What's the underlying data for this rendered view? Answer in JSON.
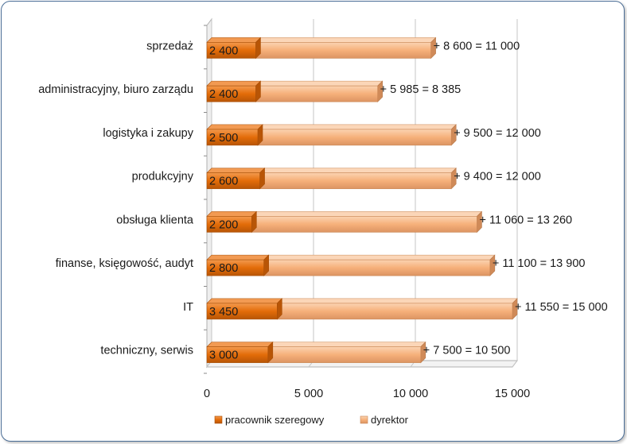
{
  "chart_data": {
    "type": "bar",
    "orientation": "horizontal",
    "stacked": true,
    "three_d": true,
    "categories": [
      "sprzedaż",
      "administracyjny, biuro zarządu",
      "logistyka i zakupy",
      "produkcyjny",
      "obsługa klienta",
      "finanse, księgowość, audyt",
      "IT",
      "techniczny, serwis"
    ],
    "series": [
      {
        "name": "pracownik szeregowy",
        "color": "#e36c09",
        "values": [
          2400,
          2400,
          2500,
          2600,
          2200,
          2800,
          3450,
          3000
        ],
        "labels": [
          "2 400",
          "2 400",
          "2 500",
          "2 600",
          "2 200",
          "2 800",
          "3 450",
          "3 000"
        ]
      },
      {
        "name": "dyrektor",
        "color": "#f6b07a",
        "values": [
          8600,
          5985,
          9500,
          9400,
          11060,
          11100,
          11550,
          7500
        ],
        "labels": [
          "+ 8 600 = 11 000",
          "+ 5 985 = 8 385",
          "+ 9 500 = 12 000",
          "+ 9 400 = 12 000",
          "+ 11 060 = 13 260",
          "+ 11 100 = 13 900",
          "+ 11 550 = 15 000",
          "+ 7 500 = 10 500"
        ]
      }
    ],
    "xlim": [
      0,
      15000
    ],
    "xticks": [
      0,
      5000,
      10000,
      15000
    ],
    "xtick_labels": [
      "0",
      "5 000",
      "10 000",
      "15 000"
    ],
    "grid": true,
    "legend_position": "bottom"
  }
}
